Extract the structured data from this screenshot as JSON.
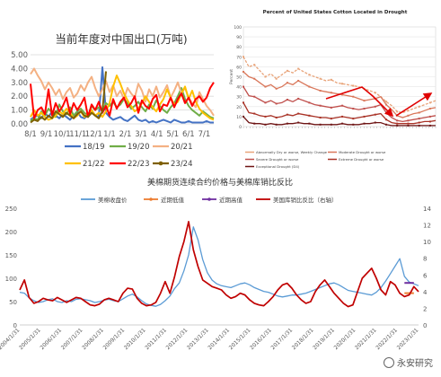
{
  "chart_data": [
    {
      "type": "line",
      "title": "当前年度对中国出口(万吨)",
      "x_tick_labels": [
        "8/1",
        "9/1",
        "10/1",
        "11/1",
        "12/1",
        "1/1",
        "2/1",
        "3/1",
        "4/1",
        "5/1",
        "6/1",
        "7/1"
      ],
      "ylim": [
        0,
        5
      ],
      "y_tick_labels": [
        "0.00",
        "1.00",
        "2.00",
        "3.00",
        "4.00",
        "5.00"
      ],
      "grid": "horizontal",
      "legend_position": "bottom",
      "series": [
        {
          "name": "18/19",
          "color": "#4472c4",
          "values": [
            0.3,
            0.5,
            0.6,
            0.4,
            0.8,
            0.5,
            0.9,
            0.6,
            0.4,
            0.7,
            0.5,
            0.3,
            0.6,
            0.9,
            0.5,
            0.4,
            0.7,
            1.0,
            0.6,
            0.5,
            4.1,
            0.8,
            0.5,
            0.3,
            0.4,
            0.5,
            0.3,
            0.2,
            0.4,
            0.6,
            0.3,
            0.2,
            0.3,
            0.1,
            0.2,
            0.1,
            0.2,
            0.3,
            0.2,
            0.1,
            0.3,
            0.2,
            0.1,
            0.1,
            0.2,
            0.1,
            0.1,
            0.1,
            0.1,
            0.2,
            0.1,
            0.1
          ]
        },
        {
          "name": "19/20",
          "color": "#70ad47",
          "values": [
            0.2,
            0.4,
            0.3,
            0.9,
            0.6,
            1.1,
            0.8,
            0.5,
            1.4,
            0.9,
            0.7,
            1.2,
            0.6,
            0.9,
            1.1,
            0.8,
            0.6,
            1.3,
            1.0,
            1.2,
            0.9,
            1.5,
            1.3,
            1.6,
            1.2,
            1.4,
            1.8,
            1.5,
            1.1,
            1.3,
            1.6,
            1.2,
            0.9,
            1.4,
            1.1,
            1.7,
            1.3,
            1.0,
            0.8,
            1.2,
            1.5,
            2.0,
            2.6,
            1.8,
            1.3,
            1.0,
            0.8,
            0.6,
            0.9,
            0.7,
            0.5,
            0.4
          ]
        },
        {
          "name": "20/21",
          "color": "#f4b183",
          "values": [
            3.6,
            4.0,
            3.5,
            3.1,
            2.5,
            3.0,
            2.6,
            2.1,
            2.5,
            1.8,
            2.3,
            2.6,
            1.9,
            2.2,
            2.8,
            2.4,
            3.0,
            3.4,
            2.6,
            2.0,
            2.5,
            3.1,
            2.3,
            2.8,
            2.0,
            2.4,
            1.8,
            2.6,
            2.2,
            1.9,
            2.9,
            2.4,
            1.6,
            2.5,
            2.0,
            2.7,
            1.9,
            2.3,
            2.8,
            1.9,
            2.4,
            3.0,
            2.2,
            2.6,
            1.9,
            1.5,
            1.2,
            2.3,
            1.8,
            1.3,
            1.0,
            0.6
          ]
        },
        {
          "name": "21/22",
          "color": "#ffc000",
          "values": [
            0.5,
            1.0,
            0.6,
            0.8,
            0.5,
            0.3,
            0.4,
            0.6,
            0.9,
            0.7,
            1.1,
            0.8,
            0.4,
            0.6,
            0.9,
            0.5,
            0.7,
            1.0,
            0.6,
            0.8,
            0.5,
            0.9,
            1.5,
            2.7,
            3.5,
            2.9,
            2.2,
            1.7,
            1.3,
            0.9,
            1.1,
            1.5,
            2.0,
            1.6,
            1.2,
            0.9,
            1.4,
            1.8,
            2.5,
            1.9,
            1.4,
            1.6,
            2.2,
            2.7,
            1.8,
            2.4,
            1.6,
            1.1,
            0.8,
            0.6,
            0.4,
            0.3
          ]
        },
        {
          "name": "22/23",
          "color": "#ff0000",
          "values": [
            2.9,
            0.4,
            1.0,
            1.2,
            0.7,
            2.5,
            0.6,
            1.5,
            0.9,
            1.3,
            1.9,
            0.7,
            1.5,
            1.0,
            1.4,
            1.9,
            0.5,
            1.4,
            1.0,
            1.6,
            0.8,
            1.3,
            0.6,
            1.8,
            1.1,
            1.6,
            1.9,
            1.2,
            1.5,
            2.0,
            0.8,
            1.7,
            1.3,
            1.1,
            1.8,
            2.1,
            0.9,
            1.4,
            1.3,
            1.9,
            1.2,
            1.8,
            2.2,
            1.5,
            1.9,
            1.3,
            1.8,
            2.0,
            1.6,
            1.9,
            2.6,
            3.0
          ]
        },
        {
          "name": "23/24",
          "color": "#7f6000",
          "values": [
            0.1,
            0.3,
            0.2,
            0.5,
            0.3,
            0.6,
            0.4,
            0.9,
            0.7,
            0.5,
            0.8,
            0.6,
            0.4,
            0.7,
            0.9,
            0.6,
            0.5,
            0.8,
            0.6,
            0.4,
            0.9,
            3.8
          ]
        }
      ]
    },
    {
      "type": "line",
      "title": "Percent of United States Cotton Located in Drought",
      "ylim": [
        0,
        100
      ],
      "y_tick_labels": [
        "0",
        "10",
        "20",
        "30",
        "40",
        "50",
        "60",
        "70",
        "80",
        "90",
        "100"
      ],
      "ylabel": "Percent",
      "legend_position": "bottom",
      "legend": [
        "Abnormally Dry or worse, Weekly Change",
        "Moderate Drought or worse",
        "Severe Drought or worse",
        "Extreme Drought or worse",
        "Exceptional Drought (D4)"
      ],
      "series": [
        {
          "name": "Abnormally Dry or worse, Weekly Change",
          "color": "#e8a47a",
          "values": [
            70,
            60,
            62,
            56,
            50,
            53,
            48,
            52,
            56,
            54,
            58,
            55,
            52,
            50,
            48,
            46,
            47,
            44,
            43,
            42,
            41,
            40,
            38,
            36,
            34,
            30,
            25,
            21,
            15,
            14,
            16,
            18,
            20,
            22,
            24,
            26
          ]
        },
        {
          "name": "Moderate Drought or worse",
          "color": "#d9775a",
          "values": [
            55,
            50,
            48,
            44,
            40,
            42,
            38,
            40,
            44,
            42,
            46,
            43,
            40,
            38,
            36,
            35,
            34,
            33,
            32,
            31,
            30,
            28,
            26,
            27,
            28,
            30,
            22,
            17,
            11,
            9,
            11,
            13,
            14,
            16,
            18,
            19
          ]
        },
        {
          "name": "Severe Drought or worse",
          "color": "#c0504d",
          "values": [
            40,
            31,
            30,
            27,
            24,
            26,
            23,
            24,
            27,
            25,
            28,
            26,
            24,
            22,
            21,
            20,
            19,
            20,
            21,
            19,
            18,
            17,
            18,
            19,
            20,
            22,
            14,
            9,
            6,
            5,
            6,
            7,
            8,
            9,
            10,
            11
          ]
        },
        {
          "name": "Extreme Drought or worse",
          "color": "#a93226",
          "values": [
            24,
            14,
            13,
            11,
            10,
            11,
            9,
            10,
            12,
            11,
            13,
            12,
            11,
            10,
            9,
            9,
            8,
            9,
            10,
            9,
            8,
            9,
            10,
            11,
            12,
            13,
            7,
            4,
            3,
            3,
            3,
            3,
            4,
            5,
            5,
            6
          ]
        },
        {
          "name": "Exceptional Drought (D4)",
          "color": "#6e1414",
          "values": [
            10,
            4,
            3,
            3,
            2,
            3,
            2,
            2,
            3,
            3,
            4,
            3,
            3,
            2,
            2,
            2,
            2,
            2,
            3,
            2,
            2,
            2,
            3,
            3,
            4,
            4,
            2,
            1,
            1,
            1,
            1,
            1,
            1,
            1,
            1,
            1
          ]
        }
      ]
    },
    {
      "type": "line",
      "title": "美棉期货连续合约价格与美棉库销比反比",
      "ylim_left": [
        0,
        250
      ],
      "y_tick_labels_left": [
        "0",
        "50",
        "100",
        "150",
        "200",
        "250"
      ],
      "ylim_right": [
        0,
        14
      ],
      "y_tick_labels_right": [
        "0",
        "2",
        "4",
        "6",
        "8",
        "10",
        "12",
        "14"
      ],
      "x_tick_labels": [
        "2004/1/31",
        "2005/1/31",
        "2006/1/31",
        "2007/1/31",
        "2008/1/31",
        "2009/1/31",
        "2010/1/31",
        "2011/1/31",
        "2012/1/31",
        "2013/1/31",
        "2014/1/31",
        "2015/1/31",
        "2016/1/31",
        "2017/1/31",
        "2018/1/31",
        "2019/1/31",
        "2020/1/31",
        "2021/1/31",
        "2022/1/31",
        "2023/1/31"
      ],
      "legend_position": "top",
      "series": [
        {
          "name": "美棉收盘价",
          "axis": "left",
          "color": "#5b9bd5",
          "values": [
            70,
            68,
            58,
            52,
            48,
            50,
            54,
            56,
            50,
            48,
            52,
            50,
            55,
            56,
            54,
            52,
            48,
            50,
            53,
            55,
            52,
            50,
            56,
            62,
            66,
            60,
            52,
            45,
            42,
            40,
            44,
            52,
            62,
            78,
            90,
            116,
            150,
            210,
            182,
            140,
            112,
            96,
            88,
            84,
            82,
            80,
            84,
            88,
            90,
            86,
            80,
            76,
            72,
            70,
            66,
            62,
            60,
            62,
            64,
            64,
            66,
            68,
            72,
            76,
            80,
            84,
            88,
            90,
            86,
            80,
            74,
            72,
            70,
            68,
            66,
            64,
            70,
            80,
            94,
            110,
            126,
            142,
            104,
            92,
            88,
            84
          ]
        },
        {
          "name": "近期低值",
          "axis": "left",
          "color": "#ed7d31",
          "values": [
            null,
            null,
            null,
            null,
            null,
            null,
            null,
            null,
            null,
            null,
            null,
            null,
            null,
            null,
            null,
            null,
            null,
            null,
            null,
            null,
            null,
            null,
            null,
            null,
            null,
            null,
            null,
            null,
            null,
            null,
            null,
            null,
            null,
            null,
            null,
            null,
            null,
            null,
            null,
            null,
            null,
            null,
            null,
            null,
            null,
            null,
            null,
            null,
            null,
            null,
            null,
            null,
            null,
            null,
            null,
            null,
            null,
            null,
            null,
            null,
            null,
            null,
            null,
            null,
            null,
            null,
            null,
            null,
            null,
            null,
            null,
            null,
            null,
            null,
            null,
            null,
            null,
            null,
            null,
            null,
            null,
            null,
            68,
            68,
            68,
            null
          ]
        },
        {
          "name": "近期高值",
          "axis": "left",
          "color": "#7030a0",
          "values": [
            null,
            null,
            null,
            null,
            null,
            null,
            null,
            null,
            null,
            null,
            null,
            null,
            null,
            null,
            null,
            null,
            null,
            null,
            null,
            null,
            null,
            null,
            null,
            null,
            null,
            null,
            null,
            null,
            null,
            null,
            null,
            null,
            null,
            null,
            null,
            null,
            null,
            null,
            null,
            null,
            null,
            null,
            null,
            null,
            null,
            null,
            null,
            null,
            null,
            null,
            null,
            null,
            null,
            null,
            null,
            null,
            null,
            null,
            null,
            null,
            null,
            null,
            null,
            null,
            null,
            null,
            null,
            null,
            null,
            null,
            null,
            null,
            null,
            null,
            null,
            null,
            null,
            null,
            null,
            null,
            null,
            null,
            90,
            90,
            90,
            null
          ]
        },
        {
          "name": "美国库销比反比（右轴）",
          "axis": "right",
          "color": "#c00000",
          "values": [
            4.2,
            5.4,
            3.3,
            2.6,
            2.8,
            3.2,
            3.0,
            2.9,
            3.3,
            3.0,
            2.7,
            3.0,
            3.3,
            3.2,
            2.8,
            2.4,
            2.3,
            2.5,
            3.0,
            3.2,
            3.0,
            2.8,
            3.8,
            4.4,
            4.3,
            3.2,
            2.6,
            2.3,
            2.4,
            2.7,
            3.8,
            5.2,
            3.8,
            5.8,
            8.2,
            10.0,
            12.4,
            9.0,
            7.0,
            5.4,
            5.0,
            4.6,
            4.4,
            4.2,
            3.6,
            3.2,
            3.4,
            3.8,
            3.6,
            3.0,
            2.6,
            2.4,
            2.3,
            2.8,
            3.4,
            4.2,
            4.8,
            5.0,
            4.4,
            3.6,
            3.0,
            2.6,
            2.8,
            4.0,
            4.8,
            5.4,
            4.6,
            3.8,
            3.2,
            2.6,
            2.2,
            2.4,
            4.0,
            5.6,
            6.2,
            6.8,
            5.6,
            4.2,
            3.6,
            5.2,
            4.8,
            3.8,
            3.4,
            3.6,
            4.6,
            4.0
          ]
        }
      ]
    }
  ],
  "watermark": {
    "text": "永安研究",
    "icon": "wechat-like-circle-icon"
  }
}
